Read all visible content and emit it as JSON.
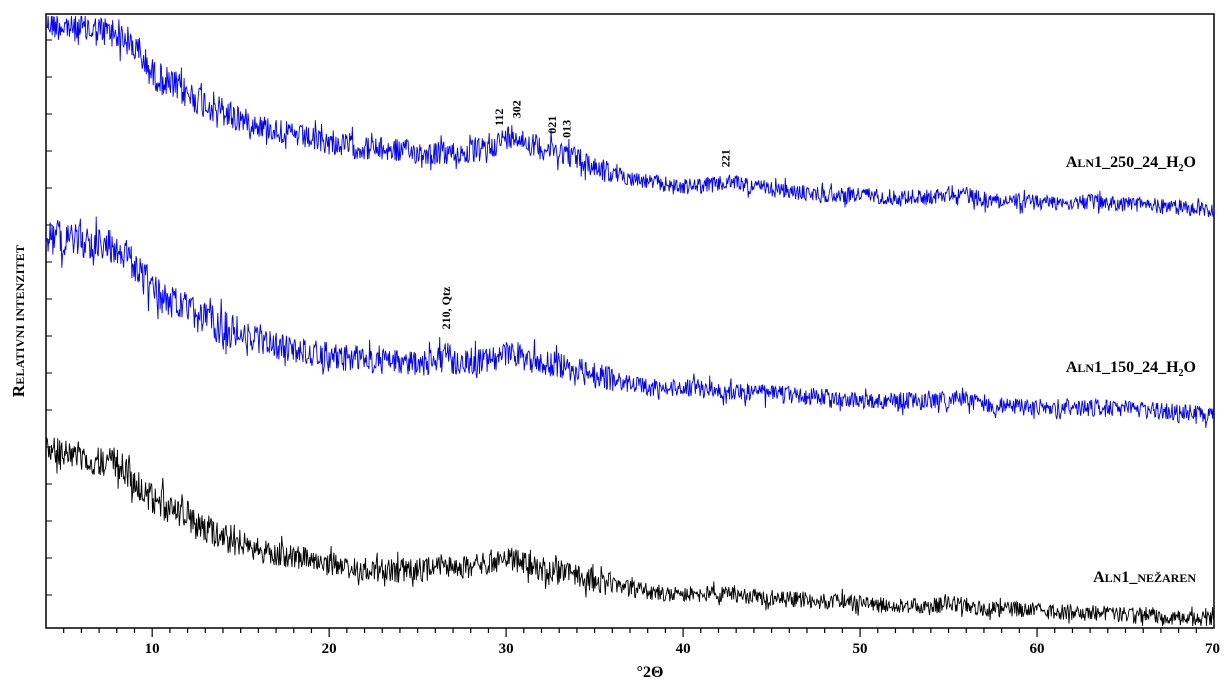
{
  "chart_data": {
    "type": "line",
    "xlabel": "°2Θ",
    "ylabel": "Relativni intenzitet",
    "xlim": [
      4,
      70
    ],
    "x_ticks": [
      10,
      20,
      30,
      40,
      50,
      60,
      70
    ],
    "grid": false,
    "series": [
      {
        "name": "ALN1_250_24_H₂O",
        "color": "#0000ff",
        "label_parts": {
          "caps_first": "A",
          "small": "LN",
          "rest": "1_250_24_H",
          "sub": "2",
          "end": "O"
        },
        "x": [
          4,
          6,
          8,
          9,
          10,
          12,
          14,
          16,
          18,
          20,
          22,
          24,
          26,
          28,
          29,
          30,
          30.5,
          31,
          32,
          33,
          34,
          35,
          36,
          38,
          40,
          42,
          43,
          44,
          46,
          48,
          50,
          52,
          54,
          55.5,
          57,
          60,
          63,
          66,
          68,
          70
        ],
        "y": [
          100,
          97,
          96,
          90,
          80,
          72,
          65,
          60,
          56,
          53,
          51,
          50,
          49,
          49,
          51,
          55,
          57,
          54,
          51,
          50,
          47,
          44,
          41,
          38,
          36,
          37,
          38,
          36,
          34,
          33,
          33,
          32,
          32,
          34,
          31,
          30,
          30,
          29,
          28,
          27
        ]
      },
      {
        "name": "ALN1_150_24_H₂O",
        "color": "#0000ff",
        "label_parts": {
          "caps_first": "A",
          "small": "LN",
          "rest": "1_150_24_H",
          "sub": "2",
          "end": "O"
        },
        "x": [
          4,
          6,
          8,
          9,
          10,
          12,
          14,
          16,
          18,
          20,
          22,
          24,
          26,
          26.6,
          27,
          28,
          29,
          30,
          30.5,
          31,
          32,
          33,
          34,
          36,
          38,
          40,
          42,
          44,
          46,
          48,
          50,
          52,
          54,
          55.5,
          57,
          60,
          63,
          66,
          68,
          70
        ],
        "y": [
          100,
          98,
          96,
          88,
          78,
          70,
          63,
          58,
          54,
          52,
          50,
          49,
          49,
          56,
          49,
          49,
          50,
          52,
          53,
          51,
          49,
          48,
          46,
          42,
          39,
          39,
          38,
          37,
          36,
          35,
          34,
          34,
          33,
          35,
          32,
          31,
          31,
          30,
          29,
          28
        ]
      },
      {
        "name": "ALN1_NEŽAREN",
        "color": "#000000",
        "label_parts": {
          "caps_first": "A",
          "small": "LN",
          "rest": "1_",
          "small2": "NEŽAREN"
        },
        "x": [
          4,
          6,
          8,
          9,
          10,
          12,
          14,
          16,
          18,
          20,
          22,
          24,
          26,
          28,
          29,
          30,
          30.5,
          31,
          32,
          33,
          34,
          36,
          38,
          40,
          42,
          44,
          46,
          48,
          50,
          52,
          54,
          55.5,
          57,
          60,
          63,
          66,
          68,
          70
        ],
        "y": [
          100,
          98,
          95,
          88,
          80,
          72,
          64,
          58,
          55,
          52,
          50,
          49,
          50,
          51,
          52,
          55,
          54,
          52,
          50,
          49,
          47,
          43,
          40,
          39,
          39,
          38,
          37,
          36,
          35,
          34,
          34,
          35,
          33,
          32,
          31,
          30,
          29,
          28
        ]
      }
    ],
    "annotations": [
      {
        "text": "112",
        "x": 29.6,
        "series": 0
      },
      {
        "text": "302",
        "x": 30.6,
        "series": 0
      },
      {
        "text": "021",
        "x": 32.6,
        "series": 0
      },
      {
        "text": "013",
        "x": 33.4,
        "series": 0
      },
      {
        "text": "221",
        "x": 42.4,
        "series": 0
      },
      {
        "text": "210, Qtz",
        "x": 26.6,
        "series": 1
      }
    ]
  }
}
